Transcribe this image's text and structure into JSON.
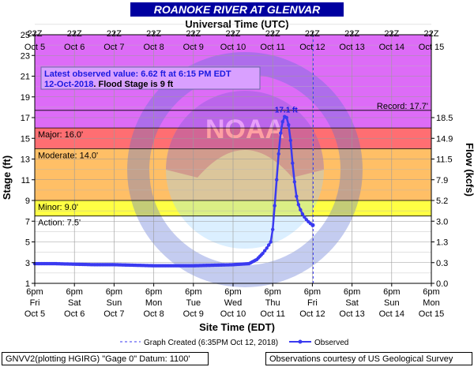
{
  "title": "ROANOKE RIVER AT GLENVAR",
  "top_axis_label": "Universal Time (UTC)",
  "bottom_axis_label": "Site Time (EDT)",
  "left_axis_label": "Stage (ft)",
  "right_axis_label": "Flow (kcfs)",
  "latest_obs": {
    "line1": "Latest observed value: 6.62 ft at 6:15 PM EDT",
    "line2_date": "12-Oct-2018",
    "line2_rest": ". Flood Stage is 9 ft"
  },
  "record_label": "Record: 17.7'",
  "peak_label": "17.1 ft",
  "legend": {
    "created": "Graph Created (6:35PM Oct 12, 2018)",
    "observed": "Observed"
  },
  "footer": {
    "left": "GNVV2(plotting HGIRG) \"Gage 0\" Datum: 1100'",
    "right": "Observations courtesy of US Geological Survey"
  },
  "colors": {
    "title_bg": "#0000a0",
    "major": "#d966ff",
    "major_band": "#ff6f6f",
    "moderate": "#ff9a4c",
    "minor": "#ffd966",
    "action": "#ffff33",
    "normal": "#ffffff",
    "observed": "#3a3af0",
    "watermark": "#5a6fd6"
  },
  "chart_data": {
    "type": "line",
    "title": "ROANOKE RIVER AT GLENVAR",
    "ylabel": "Stage (ft)",
    "y2label": "Flow (kcfs)",
    "xlabel": "Site Time (EDT)",
    "x2label": "Universal Time (UTC)",
    "ylim": [
      1,
      25
    ],
    "xlim": [
      "Oct 5 6pm",
      "Oct 15 6pm"
    ],
    "yticks": [
      1,
      3,
      5,
      7,
      9,
      11,
      13,
      15,
      17,
      19,
      21,
      23,
      25
    ],
    "flow_ticks": [
      {
        "stage": 1,
        "label": "0.0"
      },
      {
        "stage": 3,
        "label": "0.3"
      },
      {
        "stage": 5,
        "label": "1.3"
      },
      {
        "stage": 7,
        "label": "3.0"
      },
      {
        "stage": 9,
        "label": "5.2"
      },
      {
        "stage": 11,
        "label": "7.9"
      },
      {
        "stage": 13,
        "label": "11.5"
      },
      {
        "stage": 15,
        "label": "14.9"
      },
      {
        "stage": 17,
        "label": "18.5"
      }
    ],
    "bottom_ticks": [
      {
        "time": "6pm",
        "day": "Fri",
        "date": "Oct 5"
      },
      {
        "time": "6pm",
        "day": "Sat",
        "date": "Oct 6"
      },
      {
        "time": "6pm",
        "day": "Sun",
        "date": "Oct 7"
      },
      {
        "time": "6pm",
        "day": "Mon",
        "date": "Oct 8"
      },
      {
        "time": "6pm",
        "day": "Tue",
        "date": "Oct 9"
      },
      {
        "time": "6pm",
        "day": "Wed",
        "date": "Oct 10"
      },
      {
        "time": "6pm",
        "day": "Thu",
        "date": "Oct 11"
      },
      {
        "time": "6pm",
        "day": "Fri",
        "date": "Oct 12"
      },
      {
        "time": "6pm",
        "day": "Sat",
        "date": "Oct 13"
      },
      {
        "time": "6pm",
        "day": "Sun",
        "date": "Oct 14"
      },
      {
        "time": "6pm",
        "day": "Mon",
        "date": "Oct 15"
      }
    ],
    "top_ticks": [
      {
        "time": "22Z",
        "date": "Oct 5"
      },
      {
        "time": "22Z",
        "date": "Oct 6"
      },
      {
        "time": "22Z",
        "date": "Oct 7"
      },
      {
        "time": "22Z",
        "date": "Oct 8"
      },
      {
        "time": "22Z",
        "date": "Oct 9"
      },
      {
        "time": "22Z",
        "date": "Oct 10"
      },
      {
        "time": "22Z",
        "date": "Oct 11"
      },
      {
        "time": "22Z",
        "date": "Oct 12"
      },
      {
        "time": "22Z",
        "date": "Oct 13"
      },
      {
        "time": "22Z",
        "date": "Oct 14"
      },
      {
        "time": "22Z",
        "date": "Oct 15"
      }
    ],
    "flood_categories": [
      {
        "name": "Major",
        "label": "Major: 16.0'",
        "stage": 16.0
      },
      {
        "name": "Moderate",
        "label": "Moderate: 14.0'",
        "stage": 14.0
      },
      {
        "name": "Minor",
        "label": "Minor: 9.0'",
        "stage": 9.0
      },
      {
        "name": "Action",
        "label": "Action: 7.5'",
        "stage": 7.5
      }
    ],
    "record_stage": 17.7,
    "graph_created_day": 7.02,
    "series": [
      {
        "name": "Observed",
        "x_days_since_oct5_6pm": [
          0.0,
          0.5,
          1.0,
          1.5,
          2.0,
          2.5,
          3.0,
          3.5,
          4.0,
          4.5,
          5.0,
          5.4,
          5.6,
          5.75,
          5.85,
          5.95,
          6.0,
          6.05,
          6.1,
          6.15,
          6.2,
          6.25,
          6.3,
          6.35,
          6.4,
          6.45,
          6.5,
          6.55,
          6.6,
          6.65,
          6.7,
          6.75,
          6.8,
          6.85,
          6.9,
          6.95,
          7.01
        ],
        "y": [
          2.9,
          2.9,
          2.85,
          2.8,
          2.8,
          2.75,
          2.7,
          2.7,
          2.7,
          2.75,
          2.8,
          2.9,
          3.3,
          3.9,
          4.4,
          5.0,
          6.2,
          8.5,
          11.0,
          13.5,
          15.5,
          16.6,
          17.1,
          17.0,
          16.3,
          14.8,
          12.6,
          10.8,
          9.4,
          8.6,
          8.1,
          7.7,
          7.4,
          7.15,
          6.95,
          6.78,
          6.62
        ]
      }
    ]
  }
}
